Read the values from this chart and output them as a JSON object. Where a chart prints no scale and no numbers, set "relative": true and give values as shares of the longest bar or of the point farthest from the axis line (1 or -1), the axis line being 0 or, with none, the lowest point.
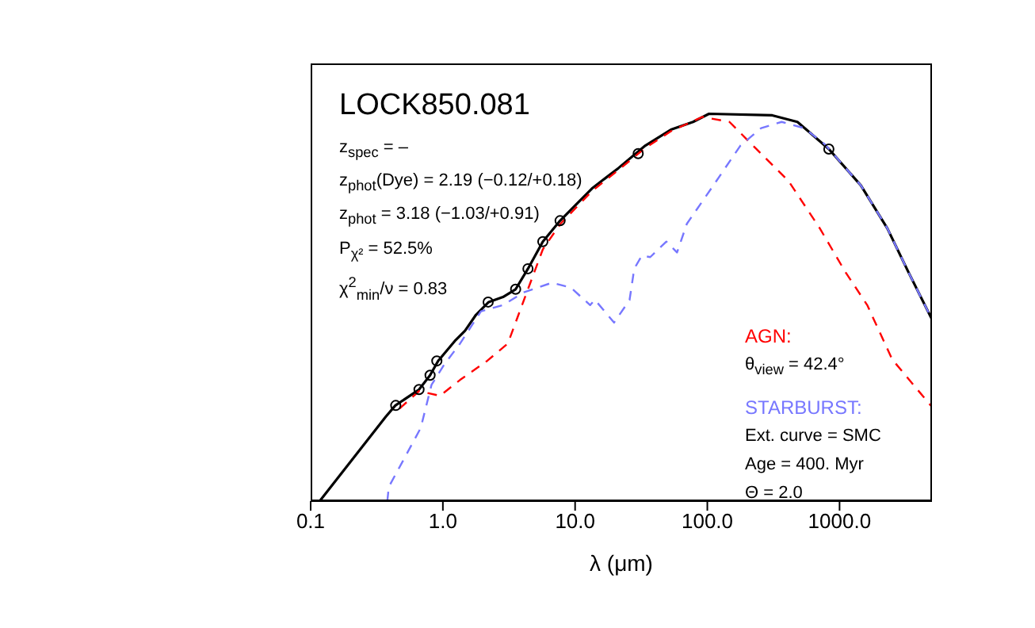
{
  "chart_data": {
    "type": "line",
    "title": "LOCK850.081",
    "xlabel": "λ (μm)",
    "log": "x",
    "relative": true,
    "legend": "bottom right",
    "grid": false,
    "xlim": [
      0.1,
      5000
    ],
    "xticks": [
      {
        "value": 0.1,
        "label": "0.1"
      },
      {
        "value": 1,
        "label": "1.0"
      },
      {
        "value": 10,
        "label": "10.0"
      },
      {
        "value": 100,
        "label": "100.0"
      },
      {
        "value": 1000,
        "label": "1000.0"
      }
    ],
    "annotations": [
      "z$_{spec}$ = –",
      "z$_{phot}$(Dye) = 2.19 (−0.12/+0.18)",
      "z$_{phot}$ = 3.18 (−1.03/+0.91)",
      "P$_{χ²}$ = 52.5%",
      "χ$^{2}$$_{min}$/ν = 0.83",
      "θ$_{view}$ = 42.4°",
      "Ext. curve = SMC",
      "Age = 400. Myr",
      "Θ = 2.0"
    ],
    "series": [
      {
        "color": "#000000",
        "line_style": "solid",
        "x": [
          0.117,
          0.37,
          0.437,
          0.66,
          0.8,
          0.92,
          1.25,
          1.47,
          1.78,
          2.22,
          2.85,
          3.55,
          4.4,
          5.7,
          7.7,
          13.4,
          21.3,
          34,
          53,
          78,
          103,
          310,
          480,
          830,
          1450,
          2300,
          3300,
          5000
        ],
        "values": [
          0,
          0.218,
          0.247,
          0.288,
          0.325,
          0.362,
          0.416,
          0.44,
          0.481,
          0.514,
          0.527,
          0.547,
          0.6,
          0.67,
          0.724,
          0.807,
          0.86,
          0.918,
          0.959,
          0.979,
          1,
          0.996,
          0.979,
          0.909,
          0.815,
          0.704,
          0.593,
          0.469
        ]
      },
      {
        "name": "AGN:",
        "color": "#ff0000",
        "line_style": "dashed",
        "x": [
          0.47,
          0.66,
          0.95,
          1.35,
          2.16,
          3.1,
          4.1,
          5.7,
          7.7,
          13.4,
          21.3,
          34,
          53,
          92,
          147,
          235,
          410,
          710,
          1100,
          1620,
          2500,
          5000
        ],
        "values": [
          0.239,
          0.284,
          0.272,
          0.313,
          0.362,
          0.407,
          0.519,
          0.65,
          0.715,
          0.8,
          0.855,
          0.912,
          0.955,
          0.992,
          0.979,
          0.909,
          0.827,
          0.704,
          0.593,
          0.506,
          0.366,
          0.243
        ]
      },
      {
        "name": "STARBURST:",
        "color": "#7777ff",
        "line_style": "dashed",
        "x": [
          0.38,
          0.39,
          0.49,
          0.68,
          0.82,
          1.03,
          1.35,
          1.94,
          2.85,
          4.1,
          6.7,
          9.3,
          13,
          14.1,
          19.7,
          25.8,
          28,
          32,
          37,
          49,
          59,
          70,
          111,
          178,
          255,
          365,
          540,
          770,
          1450,
          2300,
          3300,
          5000
        ],
        "values": [
          0,
          0.037,
          0.099,
          0.189,
          0.3,
          0.354,
          0.407,
          0.49,
          0.506,
          0.539,
          0.564,
          0.551,
          0.506,
          0.52,
          0.461,
          0.519,
          0.6,
          0.634,
          0.63,
          0.67,
          0.642,
          0.716,
          0.815,
          0.918,
          0.963,
          0.979,
          0.963,
          0.922,
          0.815,
          0.704,
          0.593,
          0.469
        ]
      },
      {
        "type": "scatter",
        "color": "#000000",
        "marker": "circle",
        "x": [
          0.44,
          0.66,
          0.8,
          0.9,
          2.2,
          3.55,
          4.4,
          5.7,
          7.7,
          30,
          830
        ],
        "values": [
          0.247,
          0.288,
          0.325,
          0.362,
          0.514,
          0.547,
          0.6,
          0.67,
          0.724,
          0.897,
          0.909
        ]
      }
    ]
  }
}
